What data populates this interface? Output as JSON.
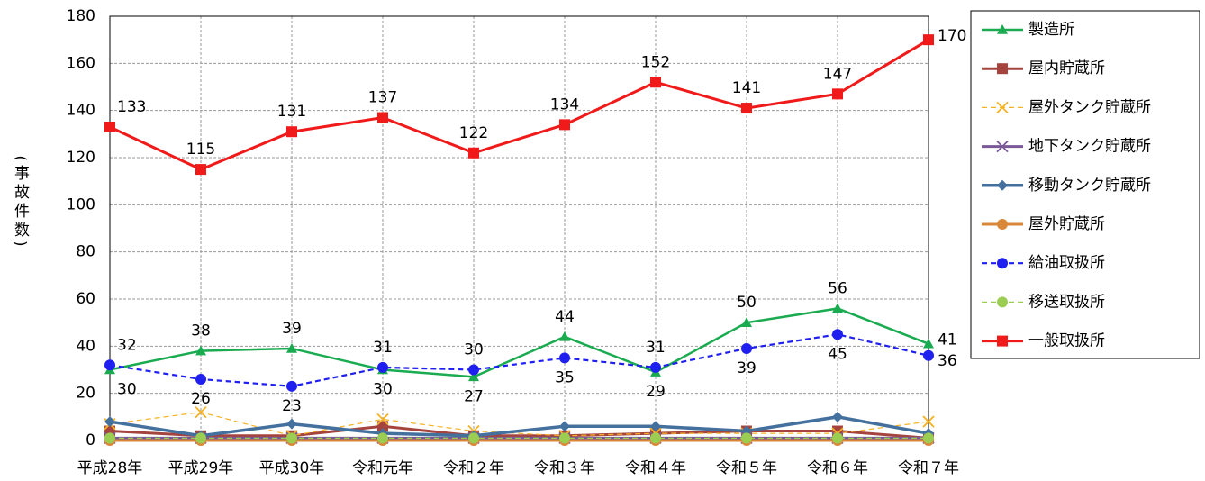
{
  "chart_data": {
    "type": "line",
    "y_label": "(事故件数)",
    "categories": [
      "平成28年",
      "平成29年",
      "平成30年",
      "令和元年",
      "令和２年",
      "令和３年",
      "令和４年",
      "令和５年",
      "令和６年",
      "令和７年"
    ],
    "ylim": [
      0,
      180
    ],
    "yticks": [
      0,
      20,
      40,
      60,
      80,
      100,
      120,
      140,
      160,
      180
    ],
    "grid": true,
    "legend": "right",
    "series": [
      {
        "name": "製造所",
        "color": "#1aab50",
        "marker": "triangle",
        "dash": false,
        "width": 2.5,
        "data_labels": true,
        "values": [
          30,
          38,
          39,
          30,
          27,
          44,
          29,
          50,
          56,
          41
        ]
      },
      {
        "name": "屋内貯蔵所",
        "color": "#a5443f",
        "marker": "square",
        "dash": false,
        "width": 3,
        "data_labels": false,
        "values": [
          4,
          2,
          2,
          6,
          2,
          2,
          3,
          4,
          4,
          1
        ]
      },
      {
        "name": "屋外タンク貯蔵所",
        "color": "#f5b324",
        "marker": "x",
        "dash": true,
        "width": 1.2,
        "data_labels": false,
        "values": [
          7,
          12,
          2,
          9,
          4,
          2,
          3,
          3,
          3,
          8
        ]
      },
      {
        "name": "地下タンク貯蔵所",
        "color": "#7a5a96",
        "marker": "x",
        "dash": false,
        "width": 3,
        "data_labels": false,
        "values": [
          1,
          1,
          1,
          1,
          1,
          1,
          1,
          1,
          1,
          1
        ]
      },
      {
        "name": "移動タンク貯蔵所",
        "color": "#44709e",
        "marker": "diamond",
        "dash": false,
        "width": 3.5,
        "data_labels": false,
        "values": [
          8,
          2,
          7,
          3,
          2,
          6,
          6,
          4,
          10,
          3
        ]
      },
      {
        "name": "屋外貯蔵所",
        "color": "#d9883a",
        "marker": "circle",
        "dash": false,
        "width": 3,
        "data_labels": false,
        "values": [
          0,
          0,
          0,
          0,
          0,
          0,
          0,
          0,
          0,
          0
        ]
      },
      {
        "name": "給油取扱所",
        "color": "#1f1ff0",
        "marker": "circle",
        "dash": true,
        "width": 2.2,
        "data_labels": true,
        "values": [
          32,
          26,
          23,
          31,
          30,
          35,
          31,
          39,
          45,
          36
        ]
      },
      {
        "name": "移送取扱所",
        "color": "#9acd52",
        "marker": "circle",
        "dash": true,
        "width": 1.2,
        "data_labels": false,
        "values": [
          1,
          1,
          1,
          1,
          1,
          1,
          1,
          1,
          1,
          1
        ]
      },
      {
        "name": "一般取扱所",
        "color": "#f01a1a",
        "marker": "square",
        "dash": false,
        "width": 3,
        "data_labels": true,
        "values": [
          133,
          115,
          131,
          137,
          122,
          134,
          152,
          141,
          147,
          170
        ]
      }
    ]
  }
}
